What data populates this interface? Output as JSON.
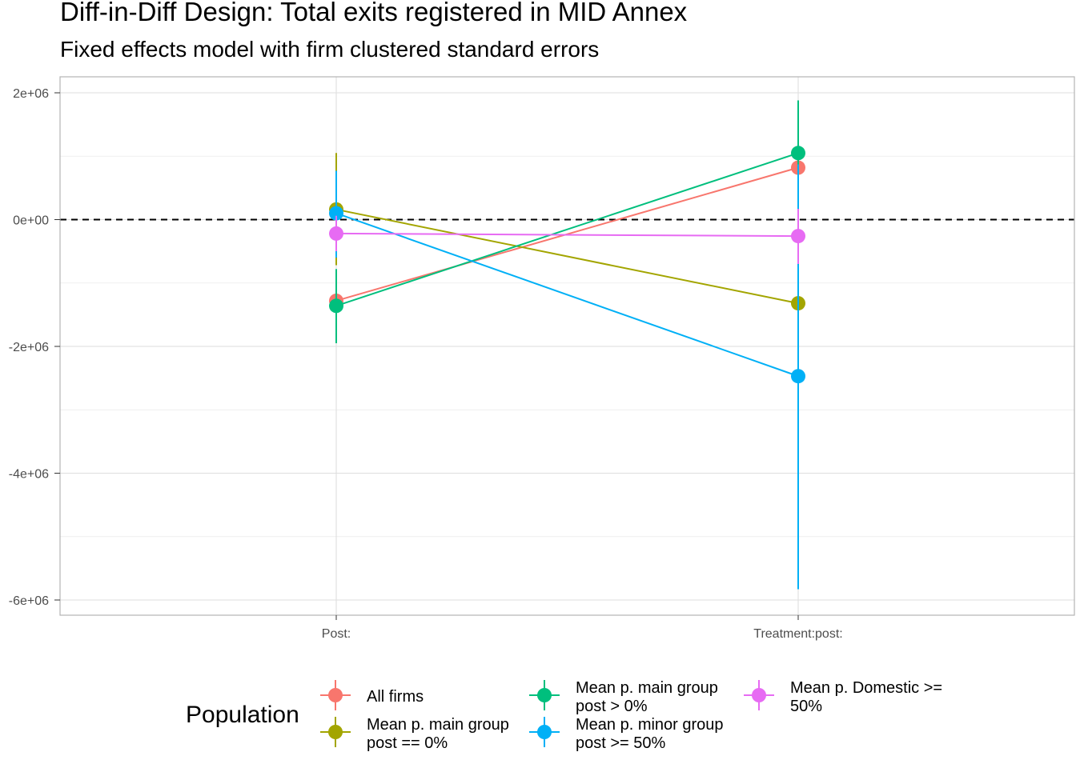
{
  "chart_data": {
    "type": "line",
    "title": "Diff-in-Diff Design: Total exits registered in MID Annex",
    "subtitle": "Fixed effects model with firm clustered standard errors",
    "categories": [
      "Post:",
      "Treatment:post:"
    ],
    "ylim": [
      -6200000,
      2500000
    ],
    "y_ticks": [
      2000000,
      0,
      -2000000,
      -4000000,
      -6000000
    ],
    "y_tick_labels": [
      "2e+06",
      "0e+00",
      "-2e+06",
      "-4e+06",
      "-6e+06"
    ],
    "reference_line": {
      "y": 0,
      "style": "dashed"
    },
    "grid": true,
    "legend": {
      "title": "Population",
      "position": "bottom"
    },
    "series": [
      {
        "name": "All firms",
        "color": "#F8766D",
        "values": [
          -1280000,
          820000
        ],
        "lower": [
          -1700000,
          0
        ],
        "upper": [
          -860000,
          1650000
        ]
      },
      {
        "name": "Mean p. main group\npost == 0%",
        "color": "#A3A500",
        "values": [
          160000,
          -1320000
        ],
        "lower": [
          -720000,
          -1850000
        ],
        "upper": [
          1050000,
          -800000
        ]
      },
      {
        "name": "Mean p. main group\npost > 0%",
        "color": "#00BF7D",
        "values": [
          -1360000,
          1050000
        ],
        "lower": [
          -1950000,
          200000
        ],
        "upper": [
          -780000,
          1880000
        ]
      },
      {
        "name": "Mean p. minor group\npost >= 50%",
        "color": "#00B0F6",
        "values": [
          100000,
          -2470000
        ],
        "lower": [
          -600000,
          -5830000
        ],
        "upper": [
          770000,
          870000
        ]
      },
      {
        "name": "Mean p. Domestic >=\n50%",
        "color": "#E76BF3",
        "values": [
          -220000,
          -260000
        ],
        "lower": [
          -500000,
          -700000
        ],
        "upper": [
          60000,
          170000
        ]
      }
    ]
  }
}
